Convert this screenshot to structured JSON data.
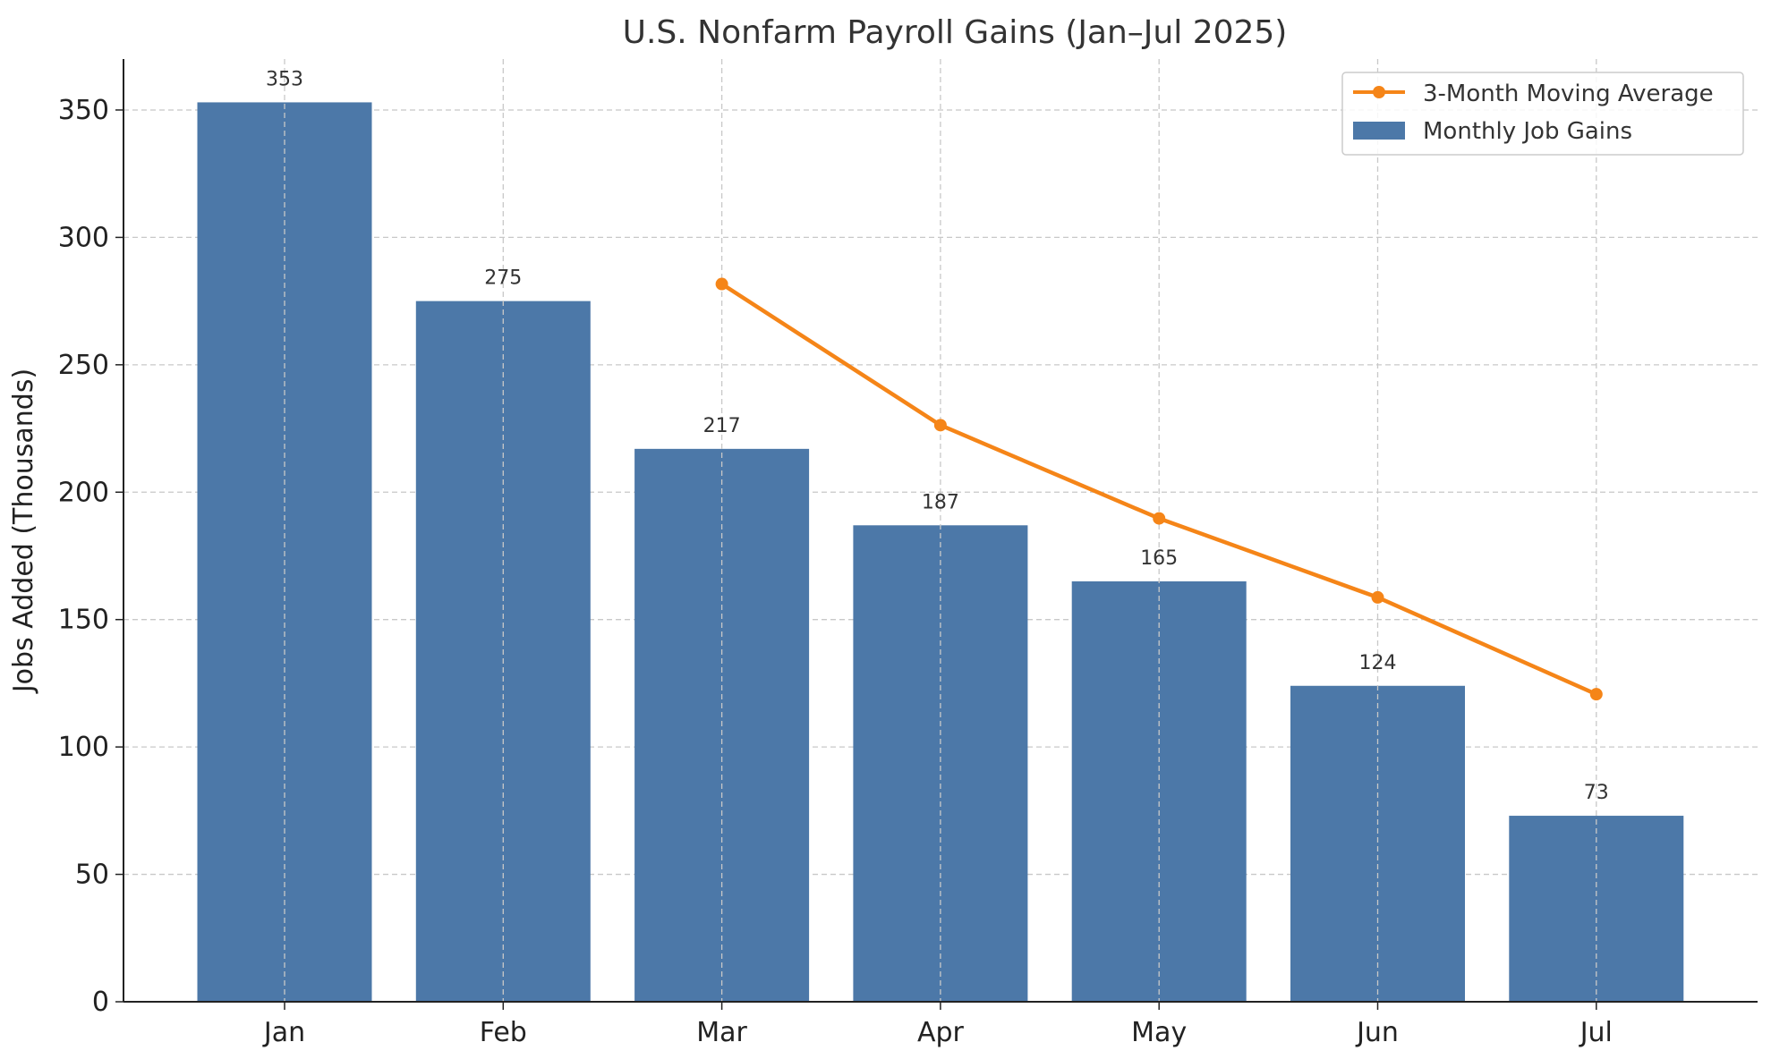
{
  "chart_data": {
    "type": "bar",
    "title": "U.S. Nonfarm Payroll Gains (Jan–Jul 2025)",
    "xlabel": "",
    "ylabel": "Jobs Added (Thousands)",
    "categories": [
      "Jan",
      "Feb",
      "Mar",
      "Apr",
      "May",
      "Jun",
      "Jul"
    ],
    "ylim": [
      0,
      370
    ],
    "yticks": [
      0,
      50,
      100,
      150,
      200,
      250,
      300,
      350
    ],
    "grid": true,
    "legend_position": "top-right",
    "series": [
      {
        "name": "Monthly Job Gains",
        "type": "bar",
        "color": "#4c78a8",
        "values": [
          353,
          275,
          217,
          187,
          165,
          124,
          73
        ],
        "data_labels": [
          "353",
          "275",
          "217",
          "187",
          "165",
          "124",
          "73"
        ]
      },
      {
        "name": "3-Month Moving Average",
        "type": "line",
        "color": "#f58518",
        "values": [
          null,
          null,
          281.7,
          226.3,
          189.7,
          158.7,
          120.7
        ]
      }
    ]
  }
}
